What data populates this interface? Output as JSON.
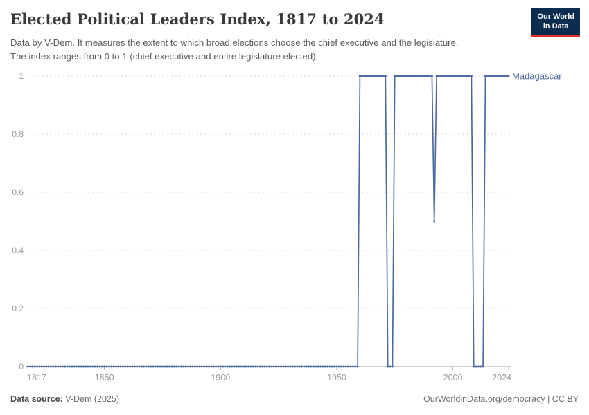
{
  "header": {
    "title": "Elected Political Leaders Index, 1817 to 2024",
    "subtitle_lines": [
      "Data by V-Dem. It measures the extent to which broad elections choose the chief executive and the legislature.",
      "The index ranges from 0 to 1 (chief executive and entire legislature elected)."
    ]
  },
  "logo": {
    "line1": "Our World",
    "line2": "in Data",
    "bg_color": "#0c2d50",
    "accent_color": "#dc352b"
  },
  "chart_data": {
    "type": "line",
    "title": "Elected Political Leaders Index, 1817 to 2024",
    "entity": "Madagascar",
    "xlabel": "",
    "ylabel": "",
    "x_range": [
      1817,
      2024
    ],
    "y_range": [
      0,
      1
    ],
    "x_ticks": [
      1817,
      1850,
      1900,
      1950,
      2000,
      2024
    ],
    "y_ticks": [
      0,
      0.2,
      0.4,
      0.6,
      0.8,
      1
    ],
    "grid": "horizontal dashed gridlines",
    "legend_position": "entity label right of line end",
    "line_color": "#4c6a9f",
    "axis_color": "#9c9c9c",
    "grid_color": "#d9d9d9",
    "tick_label_color": "#9a9a9a",
    "marker": "point at every yearly observation",
    "step_segments": [
      {
        "from": 1817,
        "to": 1959,
        "value": 0
      },
      {
        "from": 1960,
        "to": 1971,
        "value": 1
      },
      {
        "from": 1972,
        "to": 1974,
        "value": 0
      },
      {
        "from": 1975,
        "to": 1991,
        "value": 1
      },
      {
        "from": 1992,
        "to": 1992,
        "value": 0.5
      },
      {
        "from": 1993,
        "to": 2008,
        "value": 1
      },
      {
        "from": 2009,
        "to": 2013,
        "value": 0
      },
      {
        "from": 2014,
        "to": 2024,
        "value": 1
      }
    ]
  },
  "footer": {
    "source_label": "Data source:",
    "source_value": " V-Dem (2025)",
    "credit": "OurWorldinData.org/democracy | CC BY"
  }
}
